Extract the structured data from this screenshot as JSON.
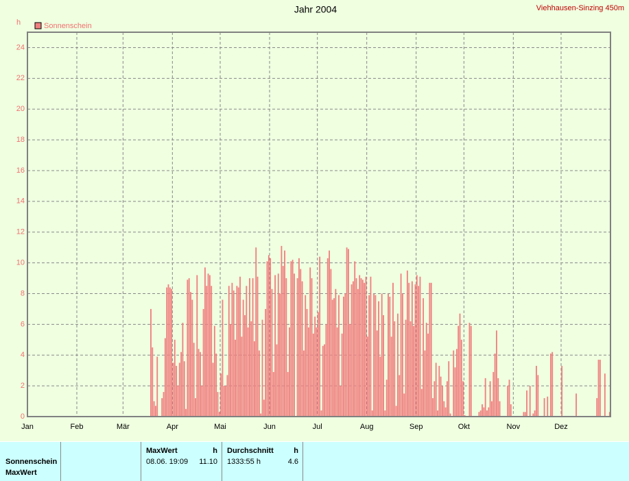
{
  "chart_data": {
    "type": "bar",
    "title": "Jahr 2004",
    "subtitle": "Viehhausen-Sinzing 450m",
    "y_label": "h",
    "categories": [
      "Jan",
      null,
      null,
      null,
      null,
      null,
      null,
      null,
      null,
      null,
      null,
      null,
      null,
      null,
      null,
      null,
      null,
      null,
      null,
      null,
      null,
      null,
      null,
      null,
      null,
      null,
      null,
      null,
      null,
      null,
      null,
      "Feb",
      null,
      null,
      null,
      null,
      null,
      null,
      null,
      null,
      null,
      null,
      null,
      null,
      null,
      null,
      null,
      null,
      null,
      null,
      null,
      null,
      null,
      null,
      null,
      null,
      null,
      null,
      null,
      null,
      "Mär",
      null,
      null,
      null,
      null,
      null,
      null,
      null,
      null,
      null,
      null,
      null,
      null,
      null,
      null,
      null,
      null,
      null,
      null,
      null,
      null,
      null,
      null,
      null,
      null,
      null,
      null,
      null,
      null,
      null,
      null,
      "Apr",
      null,
      null,
      null,
      null,
      null,
      null,
      null,
      null,
      null,
      null,
      null,
      null,
      null,
      null,
      null,
      null,
      null,
      null,
      null,
      null,
      null,
      null,
      null,
      null,
      null,
      null,
      null,
      null,
      null,
      "Mai",
      null,
      null,
      null,
      null,
      null,
      null,
      null,
      null,
      null,
      null,
      null,
      null,
      null,
      null,
      null,
      null,
      null,
      null,
      null,
      null,
      null,
      null,
      null,
      null,
      null,
      null,
      null,
      null,
      null,
      null,
      "Jun",
      null,
      null,
      null,
      null,
      null,
      null,
      null,
      null,
      null,
      null,
      null,
      null,
      null,
      null,
      null,
      null,
      null,
      null,
      null,
      null,
      null,
      null,
      null,
      null,
      null,
      null,
      null,
      null,
      null,
      "Jul",
      null,
      null,
      null,
      null,
      null,
      null,
      null,
      null,
      null,
      null,
      null,
      null,
      null,
      null,
      null,
      null,
      null,
      null,
      null,
      null,
      null,
      null,
      null,
      null,
      null,
      null,
      null,
      null,
      null,
      null,
      "Aug",
      null,
      null,
      null,
      null,
      null,
      null,
      null,
      null,
      null,
      null,
      null,
      null,
      null,
      null,
      null,
      null,
      null,
      null,
      null,
      null,
      null,
      null,
      null,
      null,
      null,
      null,
      null,
      null,
      null,
      null,
      "Sep",
      null,
      null,
      null,
      null,
      null,
      null,
      null,
      null,
      null,
      null,
      null,
      null,
      null,
      null,
      null,
      null,
      null,
      null,
      null,
      null,
      null,
      null,
      null,
      null,
      null,
      null,
      null,
      null,
      null,
      "Okt",
      null,
      null,
      null,
      null,
      null,
      null,
      null,
      null,
      null,
      null,
      null,
      null,
      null,
      null,
      null,
      null,
      null,
      null,
      null,
      null,
      null,
      null,
      null,
      null,
      null,
      null,
      null,
      null,
      null,
      null,
      "Nov",
      null,
      null,
      null,
      null,
      null,
      null,
      null,
      null,
      null,
      null,
      null,
      null,
      null,
      null,
      null,
      null,
      null,
      null,
      null,
      null,
      null,
      null,
      null,
      null,
      null,
      null,
      null,
      null,
      null,
      "Dez",
      null,
      null,
      null,
      null,
      null,
      null,
      null,
      null,
      null,
      null,
      null,
      null,
      null,
      null,
      null,
      null,
      null,
      null,
      null,
      null,
      null,
      null,
      null,
      null,
      null,
      null,
      null,
      null,
      null,
      null
    ],
    "series": [
      {
        "name": "Sonnenschein",
        "color": "#f08080",
        "values": [
          0,
          0,
          0,
          0,
          0,
          0,
          0,
          0,
          0,
          0,
          0,
          0,
          0,
          0,
          0,
          0,
          0,
          0,
          0,
          0,
          0,
          0,
          0,
          0,
          0,
          0,
          0,
          0,
          0,
          0,
          0,
          0,
          0,
          0,
          0,
          0,
          0,
          0,
          0,
          0,
          0,
          0,
          0,
          0,
          0,
          0,
          0,
          0,
          0,
          0,
          0,
          0,
          0,
          0,
          0,
          0,
          0,
          0,
          0,
          0,
          0,
          0,
          0,
          0,
          0,
          0,
          0,
          0,
          0,
          0,
          0,
          0,
          0,
          0,
          0,
          0,
          0,
          7.0,
          4.5,
          1.0,
          0.7,
          3.9,
          0,
          0,
          1.2,
          1.6,
          5.1,
          8.4,
          8.6,
          8.4,
          8.3,
          3.5,
          5.0,
          3.3,
          2.0,
          3.5,
          4.2,
          6.1,
          3.6,
          0.5,
          8.9,
          9.0,
          8.1,
          7.6,
          4.8,
          1.2,
          9.2,
          4.4,
          4.2,
          2.0,
          7.0,
          9.7,
          8.5,
          9.3,
          9.2,
          8.5,
          3.5,
          5.9,
          4.1,
          1.6,
          0.3,
          2.8,
          7.6,
          2.0,
          2.0,
          2.7,
          8.5,
          6.0,
          8.7,
          8.2,
          5.0,
          8.5,
          8.4,
          9.1,
          5.2,
          7.6,
          6.6,
          8.5,
          5.8,
          9.0,
          6.2,
          9.0,
          4.9,
          11.0,
          9.1,
          4.3,
          0.2,
          6.3,
          1.1,
          7.0,
          10.1,
          10.5,
          10.3,
          8.3,
          2.9,
          9.2,
          4.7,
          9.3,
          8.0,
          11.1,
          9.8,
          10.8,
          9.0,
          2.9,
          5.8,
          10.1,
          10.2,
          9.3,
          0,
          9.0,
          10.3,
          9.6,
          8.8,
          4.3,
          7.9,
          7.0,
          5.8,
          9.7,
          9.0,
          5.4,
          6.5,
          5.8,
          6.8,
          10.4,
          0.4,
          4.6,
          4.7,
          6.0,
          10.3,
          10.8,
          9.6,
          7.6,
          7.7,
          8.3,
          5.8,
          7.9,
          2.0,
          5.4,
          7.8,
          8.0,
          11.0,
          10.9,
          6.0,
          8.6,
          8.8,
          10.1,
          9.0,
          8.3,
          9.2,
          9.0,
          8.9,
          8.7,
          9.1,
          5.2,
          7.9,
          9.1,
          0.4,
          8.0,
          7.9,
          5.6,
          7.5,
          3.9,
          8.0,
          6.6,
          0.4,
          2.4,
          8.0,
          7.8,
          5.2,
          8.7,
          6.2,
          0.7,
          6.7,
          2.7,
          9.3,
          8.0,
          1.5,
          6.3,
          9.5,
          8.7,
          6.2,
          8.8,
          5.9,
          8.6,
          9.2,
          8.5,
          9.1,
          1.8,
          7.7,
          4.3,
          6.1,
          5.4,
          8.7,
          8.7,
          1.2,
          2.3,
          3.5,
          0.4,
          3.3,
          2.6,
          2.0,
          1.0,
          0.6,
          2.3,
          3.6,
          0.2,
          0,
          4.3,
          3.2,
          4.4,
          5.9,
          6.7,
          5.0,
          2.3,
          0.1,
          0,
          0,
          6.1,
          5.9,
          0,
          0,
          0,
          0,
          0.3,
          0.4,
          0.8,
          0.6,
          2.5,
          0.4,
          0.6,
          2.3,
          1.0,
          2.9,
          4.1,
          5.6,
          2.5,
          1.0,
          0,
          0,
          0,
          0,
          2.0,
          2.4,
          0.8,
          0,
          0,
          0,
          0,
          0,
          0,
          0,
          0.3,
          0.3,
          1.7,
          0,
          2.0,
          0,
          0.2,
          0.4,
          3.3,
          2.7,
          0,
          0,
          0,
          1.2,
          0,
          1.3,
          0,
          4.1,
          4.2,
          0,
          0,
          0,
          0,
          0,
          3.3,
          0,
          0,
          0,
          0,
          0,
          0,
          0,
          0,
          1.5,
          0,
          0,
          0,
          0,
          0,
          0,
          0,
          0,
          0,
          0,
          0,
          0,
          1.2,
          3.7,
          3.7,
          0,
          0,
          2.8,
          0,
          0,
          0.3
        ]
      }
    ],
    "ylim": [
      0,
      25
    ],
    "yticks": [
      0,
      2,
      4,
      6,
      8,
      10,
      12,
      14,
      16,
      18,
      20,
      22,
      24
    ],
    "grid": true
  },
  "stats": {
    "row_label": "Sonnenschein",
    "row_sub_label": "MaxWert",
    "max": {
      "header": "MaxWert",
      "unit": "h",
      "date": "08.06.  19:09",
      "value": "11.10"
    },
    "avg": {
      "header": "Durchschnitt",
      "unit": "h",
      "total": "1333:55 h",
      "value": "4.6"
    }
  }
}
